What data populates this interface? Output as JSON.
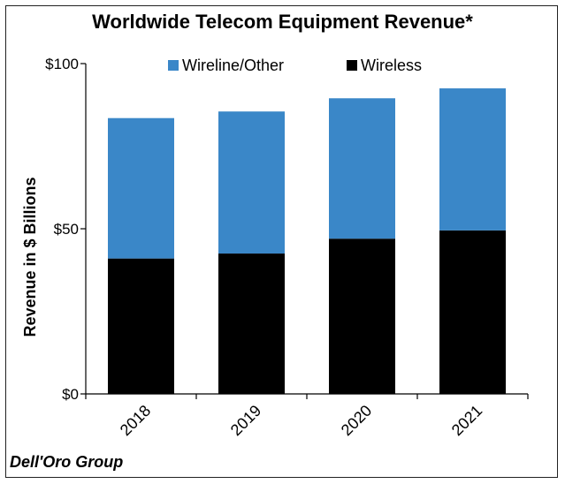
{
  "chart_data": {
    "type": "bar",
    "stacked": true,
    "title": "Worldwide Telecom Equipment Revenue*",
    "ylabel": "Revenue in $ Billions",
    "xlabel": "",
    "categories": [
      "2018",
      "2019",
      "2020",
      "2021"
    ],
    "ylim": [
      0,
      100
    ],
    "yticks": [
      0,
      50,
      100
    ],
    "ytick_labels": [
      "$0",
      "$50",
      "$100"
    ],
    "series": [
      {
        "name": "Wireless",
        "color": "#000000",
        "values": [
          41,
          42.5,
          47,
          49.5
        ]
      },
      {
        "name": "Wireline/Other",
        "color": "#3a87c8",
        "values": [
          42.5,
          43,
          42.5,
          43
        ]
      }
    ],
    "legend_order": [
      "Wireline/Other",
      "Wireless"
    ],
    "legend_position": "top",
    "grid": false
  },
  "source": "Dell'Oro Group"
}
